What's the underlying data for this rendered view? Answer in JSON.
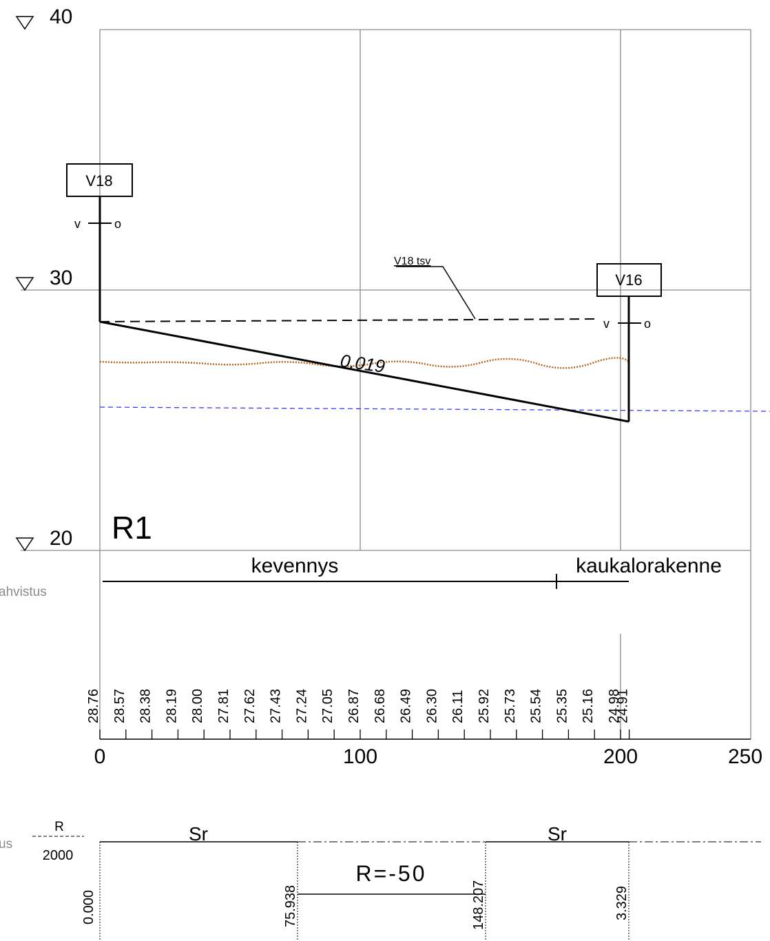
{
  "elevation_labels": [
    "40",
    "30",
    "20"
  ],
  "pipe": {
    "id": "R1",
    "upper_well": "V18",
    "lower_well": "V16",
    "well_side_left": "v",
    "well_side_right": "o",
    "slope_label": "0.019",
    "terrain_line_label": "V18 tsv"
  },
  "road_structure": {
    "left_label": "kevennys",
    "right_label": "kaukalorakenne",
    "margin_label": "ahvistus"
  },
  "station_elevations": [
    "28.76",
    "28.57",
    "28.38",
    "28.19",
    "28.00",
    "27.81",
    "27.62",
    "27.43",
    "27.24",
    "27.05",
    "26.87",
    "26.68",
    "26.49",
    "26.30",
    "26.11",
    "25.92",
    "25.73",
    "25.54",
    "25.35",
    "25.16",
    "24.98",
    "24.91"
  ],
  "axis_ticks": [
    "0",
    "100",
    "200",
    "250"
  ],
  "alignment": {
    "margin_label": "us",
    "r_header": "R",
    "r_value": "2000",
    "sections": [
      "Sr",
      "Sr"
    ],
    "curve_label": "R=-50",
    "stations": [
      "0.000",
      "75.938",
      "148.207",
      "3.329"
    ]
  },
  "colors": {
    "grid": "#8a8a8a",
    "pipe": "#000000",
    "ground": "#b5651d",
    "water": "#3a3aff"
  }
}
